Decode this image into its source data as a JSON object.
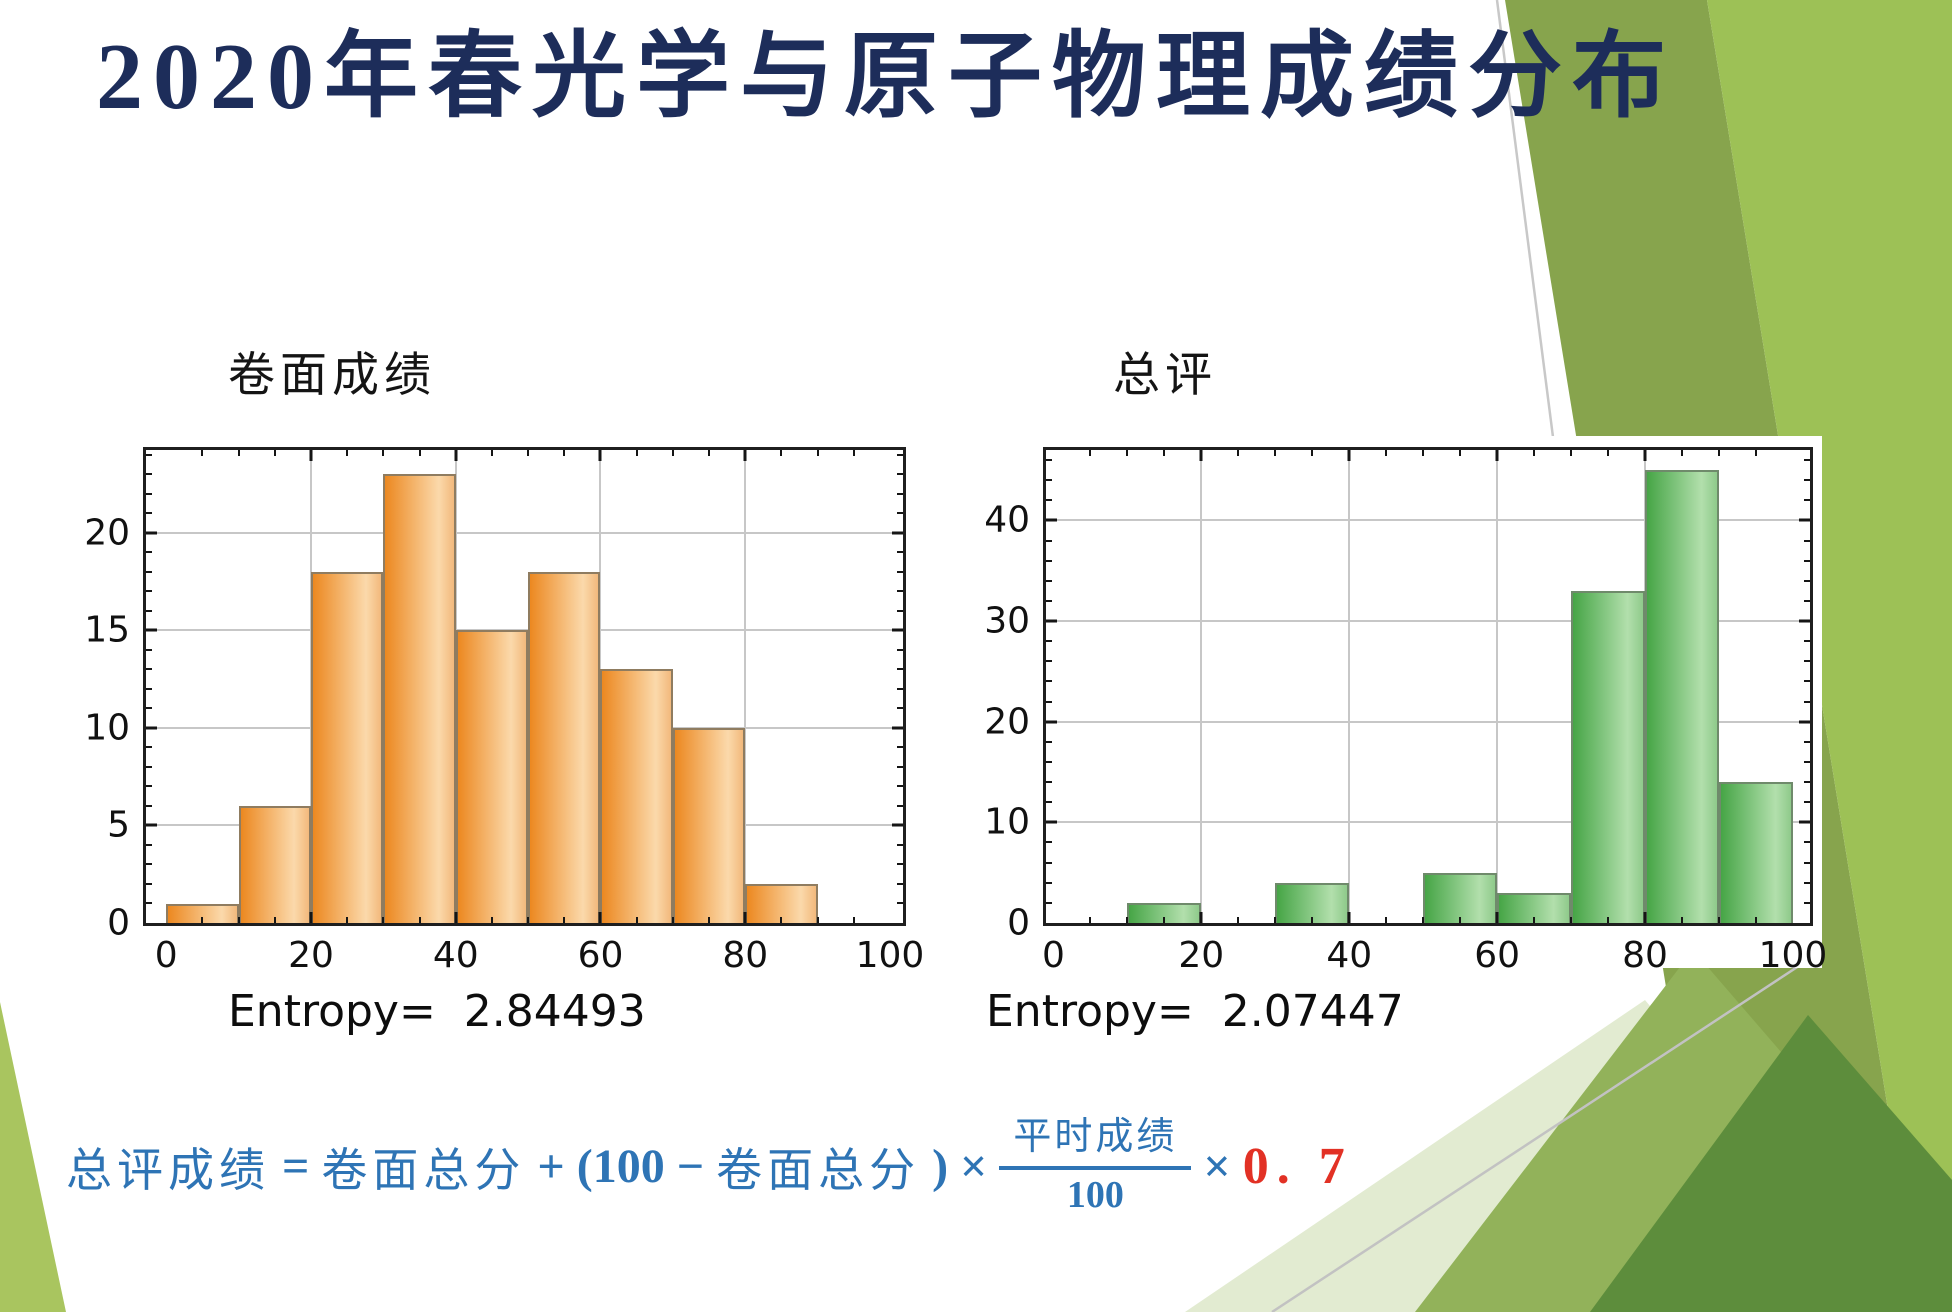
{
  "slide": {
    "title": "2020年春光学与原子物理成绩分布",
    "title_color": "#1d2d5a"
  },
  "chart_data": [
    {
      "type": "bar",
      "title": "卷面成绩",
      "caption": "Entropy=  2.84493",
      "bin_width": 10,
      "bins": [
        {
          "from": 0,
          "count": 1
        },
        {
          "from": 10,
          "count": 6
        },
        {
          "from": 20,
          "count": 18
        },
        {
          "from": 30,
          "count": 23
        },
        {
          "from": 40,
          "count": 15
        },
        {
          "from": 50,
          "count": 18
        },
        {
          "from": 60,
          "count": 13
        },
        {
          "from": 70,
          "count": 10
        },
        {
          "from": 80,
          "count": 2
        },
        {
          "from": 90,
          "count": 0
        }
      ],
      "xlim": [
        -2.8,
        101.8
      ],
      "ylim": [
        0,
        24.25
      ],
      "x_tick_labels": [
        0,
        20,
        40,
        60,
        80,
        100
      ],
      "y_tick_labels": [
        0,
        5,
        10,
        15,
        20
      ],
      "x_major_step": 20,
      "x_minor_step": 5,
      "y_major_step": 5,
      "y_minor_step": 1,
      "grid": true,
      "legend": "none",
      "bar_dark": "#ec8820",
      "bar_light": "#fbd9ab",
      "bar_edge": "#f2b97c",
      "bar_border": "#8f7c60"
    },
    {
      "type": "bar",
      "title": "总评",
      "caption": "Entropy=  2.07447",
      "bin_width": 10,
      "bins": [
        {
          "from": 0,
          "count": 0
        },
        {
          "from": 10,
          "count": 2
        },
        {
          "from": 20,
          "count": 0
        },
        {
          "from": 30,
          "count": 4
        },
        {
          "from": 40,
          "count": 0
        },
        {
          "from": 50,
          "count": 5
        },
        {
          "from": 60,
          "count": 3
        },
        {
          "from": 70,
          "count": 33
        },
        {
          "from": 80,
          "count": 45
        },
        {
          "from": 90,
          "count": 14
        }
      ],
      "xlim": [
        -1,
        102.3
      ],
      "ylim": [
        0,
        47
      ],
      "x_tick_labels": [
        0,
        20,
        40,
        60,
        80,
        100
      ],
      "y_tick_labels": [
        0,
        10,
        20,
        30,
        40
      ],
      "x_major_step": 20,
      "x_minor_step": 5,
      "y_major_step": 10,
      "y_minor_step": 2,
      "grid": true,
      "legend": "none",
      "bar_dark": "#46a546",
      "bar_light": "#b2dfac",
      "bar_edge": "#8fca8b",
      "bar_border": "#6f8a6b"
    }
  ],
  "formula": {
    "lhs": "总评成绩",
    "eq": "=",
    "term1": "卷面总分",
    "plus": "+",
    "open": "(100 −",
    "term2": "卷面总分",
    "close": ") ×",
    "frac_num": "平时成绩",
    "frac_den": "100",
    "times": "×",
    "coef": "0. 7",
    "color_main": "#2e74b5",
    "color_coef": "#e23125"
  }
}
